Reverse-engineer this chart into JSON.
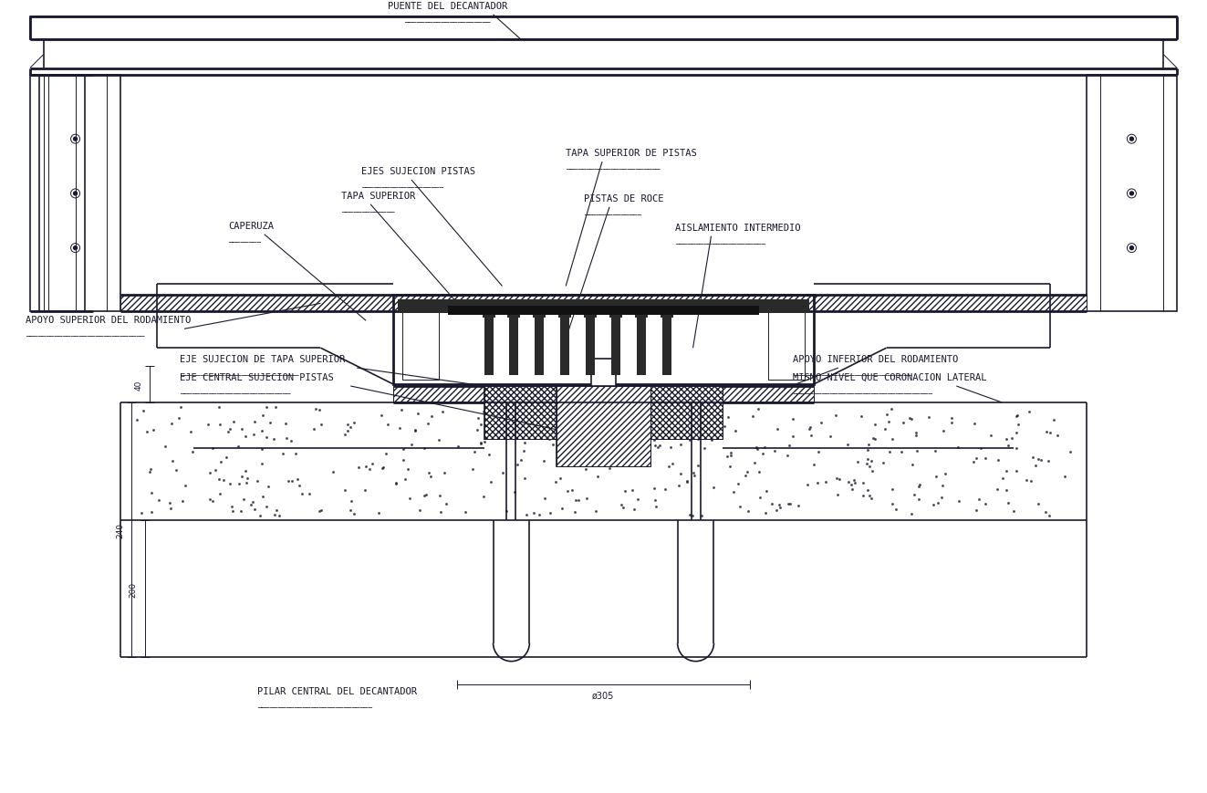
{
  "bg_color": "#ffffff",
  "line_color": "#1a1a2e",
  "hatch_color": "#1a1a2e",
  "title": "",
  "labels": {
    "puente_del_decantador": "PUENTE DEL DECANTADOR",
    "ejes_sujecion_pistas": "EJES SUJECION PISTAS",
    "tapa_superior_de_pistas": "TAPA SUPERIOR DE PISTAS",
    "tapa_superior": "TAPA SUPERIOR",
    "pistas_de_roce": "PISTAS DE ROCE",
    "caperuza": "CAPERUZA",
    "aislamiento_intermedio": "AISLAMIENTO INTERMEDIO",
    "apoyo_superior_del_rodamiento": "APOYO SUPERIOR DEL RODAMIENTO",
    "eje_sujecion_de_tapa_superior": "EJE SUJECION DE TAPA SUPERIOR",
    "eje_central_sujecion_pistas": "EJE CENTRAL SUJECION PISTAS",
    "apoyo_inferior_del_rodamiento": "APOYO INFERIOR DEL RODAMIENTO",
    "mismo_nivel_que_coronacion_lateral": "MISMO NIVEL QUE CORONACION LATERAL",
    "pilar_central_del_decantador": "PILAR CENTRAL DEL DECANTADOR",
    "dim_40": "40",
    "dim_240": "240",
    "dim_200": "200",
    "dim_305": "ø305"
  }
}
